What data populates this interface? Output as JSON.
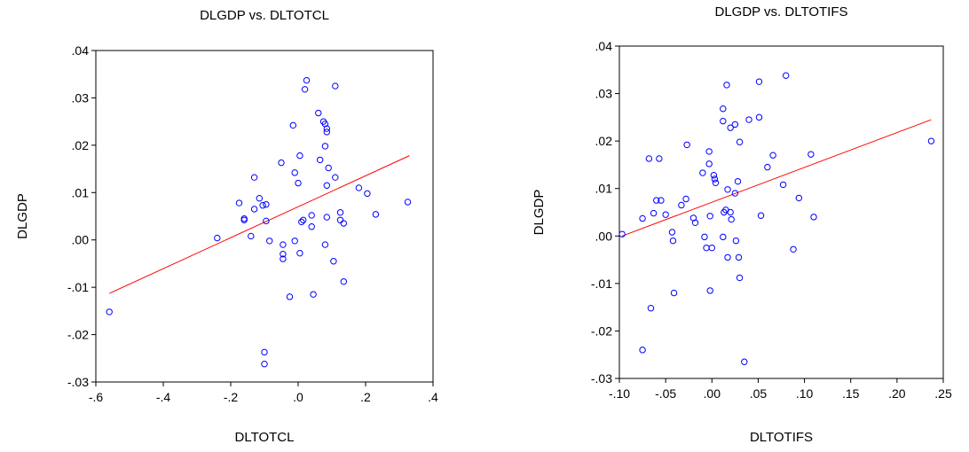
{
  "chart_data": [
    {
      "type": "scatter",
      "title": "DLGDP vs. DLTOTCL",
      "xlabel": "DLTOTCL",
      "ylabel": "DLGDP",
      "xlim": [
        -0.6,
        0.4
      ],
      "ylim": [
        -0.03,
        0.04
      ],
      "xticks": [
        -0.6,
        -0.4,
        -0.2,
        0.0,
        0.2,
        0.4
      ],
      "xtick_labels": [
        "-.6",
        "-.4",
        "-.2",
        ".0",
        ".2",
        ".4"
      ],
      "yticks": [
        -0.03,
        -0.02,
        -0.01,
        0.0,
        0.01,
        0.02,
        0.03,
        0.04
      ],
      "ytick_labels": [
        "-.03",
        "-.02",
        "-.01",
        ".00",
        ".01",
        ".02",
        ".03",
        ".04"
      ],
      "fit_line": [
        [
          -0.56,
          -0.0113
        ],
        [
          0.33,
          0.0178
        ]
      ],
      "points": [
        [
          -0.56,
          -0.0152
        ],
        [
          -0.24,
          0.0004
        ],
        [
          -0.175,
          0.0078
        ],
        [
          -0.16,
          0.0045
        ],
        [
          -0.16,
          0.0042
        ],
        [
          -0.14,
          0.0008
        ],
        [
          -0.13,
          0.0132
        ],
        [
          -0.13,
          0.0065
        ],
        [
          -0.115,
          0.0088
        ],
        [
          -0.105,
          0.0073
        ],
        [
          -0.095,
          0.0075
        ],
        [
          -0.095,
          0.004
        ],
        [
          -0.085,
          -0.0002
        ],
        [
          -0.1,
          -0.0237
        ],
        [
          -0.1,
          -0.0262
        ],
        [
          -0.05,
          0.0163
        ],
        [
          -0.045,
          -0.001
        ],
        [
          -0.045,
          -0.003
        ],
        [
          -0.045,
          -0.004
        ],
        [
          -0.025,
          -0.012
        ],
        [
          -0.015,
          0.0242
        ],
        [
          -0.01,
          0.0142
        ],
        [
          -0.01,
          -0.0002
        ],
        [
          0.0,
          0.012
        ],
        [
          0.005,
          0.0178
        ],
        [
          0.005,
          -0.0028
        ],
        [
          0.01,
          0.0038
        ],
        [
          0.015,
          0.0042
        ],
        [
          0.02,
          0.0318
        ],
        [
          0.025,
          0.0337
        ],
        [
          0.04,
          0.0052
        ],
        [
          0.04,
          0.0028
        ],
        [
          0.045,
          -0.0115
        ],
        [
          0.06,
          0.0268
        ],
        [
          0.065,
          0.0169
        ],
        [
          0.075,
          0.025
        ],
        [
          0.08,
          0.0245
        ],
        [
          0.085,
          0.0235
        ],
        [
          0.085,
          0.0228
        ],
        [
          0.08,
          0.0198
        ],
        [
          0.09,
          0.0152
        ],
        [
          0.085,
          0.0115
        ],
        [
          0.085,
          0.0048
        ],
        [
          0.08,
          -0.001
        ],
        [
          0.105,
          -0.0045
        ],
        [
          0.11,
          0.0325
        ],
        [
          0.11,
          0.0132
        ],
        [
          0.125,
          0.0058
        ],
        [
          0.125,
          0.0042
        ],
        [
          0.135,
          0.0035
        ],
        [
          0.135,
          -0.0088
        ],
        [
          0.18,
          0.011
        ],
        [
          0.205,
          0.0098
        ],
        [
          0.23,
          0.0054
        ],
        [
          0.325,
          0.008
        ]
      ]
    },
    {
      "type": "scatter",
      "title": "DLGDP vs. DLTOTIFS",
      "xlabel": "DLTOTIFS",
      "ylabel": "DLGDP",
      "xlim": [
        -0.1,
        0.25
      ],
      "ylim": [
        -0.03,
        0.04
      ],
      "xticks": [
        -0.1,
        -0.05,
        0.0,
        0.05,
        0.1,
        0.15,
        0.2,
        0.25
      ],
      "xtick_labels": [
        "-.10",
        "-.05",
        ".00",
        ".05",
        ".10",
        ".15",
        ".20",
        ".25"
      ],
      "yticks": [
        -0.03,
        -0.02,
        -0.01,
        0.0,
        0.01,
        0.02,
        0.03,
        0.04
      ],
      "ytick_labels": [
        "-.03",
        "-.02",
        "-.01",
        ".00",
        ".01",
        ".02",
        ".03",
        ".04"
      ],
      "fit_line": [
        [
          -0.097,
          0.0
        ],
        [
          0.237,
          0.0245
        ]
      ],
      "points": [
        [
          -0.097,
          0.0004
        ],
        [
          -0.075,
          0.0037
        ],
        [
          -0.075,
          -0.024
        ],
        [
          -0.068,
          0.0163
        ],
        [
          -0.066,
          -0.0152
        ],
        [
          -0.063,
          0.0048
        ],
        [
          -0.06,
          0.0075
        ],
        [
          -0.057,
          0.0163
        ],
        [
          -0.055,
          0.0075
        ],
        [
          -0.05,
          0.0045
        ],
        [
          -0.043,
          0.0008
        ],
        [
          -0.042,
          -0.001
        ],
        [
          -0.041,
          -0.012
        ],
        [
          -0.033,
          0.0065
        ],
        [
          -0.028,
          0.0078
        ],
        [
          -0.027,
          0.0192
        ],
        [
          -0.02,
          0.0038
        ],
        [
          -0.018,
          0.0028
        ],
        [
          -0.01,
          0.0133
        ],
        [
          -0.008,
          -0.0002
        ],
        [
          -0.006,
          -0.0025
        ],
        [
          -0.003,
          0.0178
        ],
        [
          -0.003,
          0.0152
        ],
        [
          -0.002,
          0.0042
        ],
        [
          -0.002,
          -0.0115
        ],
        [
          0.0,
          -0.0025
        ],
        [
          0.002,
          0.0128
        ],
        [
          0.003,
          0.012
        ],
        [
          0.004,
          0.0112
        ],
        [
          0.012,
          0.0242
        ],
        [
          0.012,
          0.0268
        ],
        [
          0.012,
          -0.0002
        ],
        [
          0.013,
          0.005
        ],
        [
          0.015,
          0.0055
        ],
        [
          0.016,
          0.0318
        ],
        [
          0.017,
          -0.0045
        ],
        [
          0.017,
          0.0098
        ],
        [
          0.02,
          0.0228
        ],
        [
          0.02,
          0.005
        ],
        [
          0.021,
          0.0035
        ],
        [
          0.025,
          0.0235
        ],
        [
          0.025,
          0.009
        ],
        [
          0.026,
          -0.001
        ],
        [
          0.028,
          0.0115
        ],
        [
          0.029,
          -0.0045
        ],
        [
          0.03,
          -0.0088
        ],
        [
          0.03,
          0.0198
        ],
        [
          0.035,
          -0.0265
        ],
        [
          0.04,
          0.0245
        ],
        [
          0.051,
          0.0325
        ],
        [
          0.051,
          0.025
        ],
        [
          0.053,
          0.0043
        ],
        [
          0.06,
          0.0145
        ],
        [
          0.066,
          0.017
        ],
        [
          0.077,
          0.0108
        ],
        [
          0.08,
          0.0338
        ],
        [
          0.088,
          -0.0028
        ],
        [
          0.094,
          0.008
        ],
        [
          0.107,
          0.0172
        ],
        [
          0.11,
          0.004
        ],
        [
          0.237,
          0.02
        ]
      ]
    }
  ]
}
